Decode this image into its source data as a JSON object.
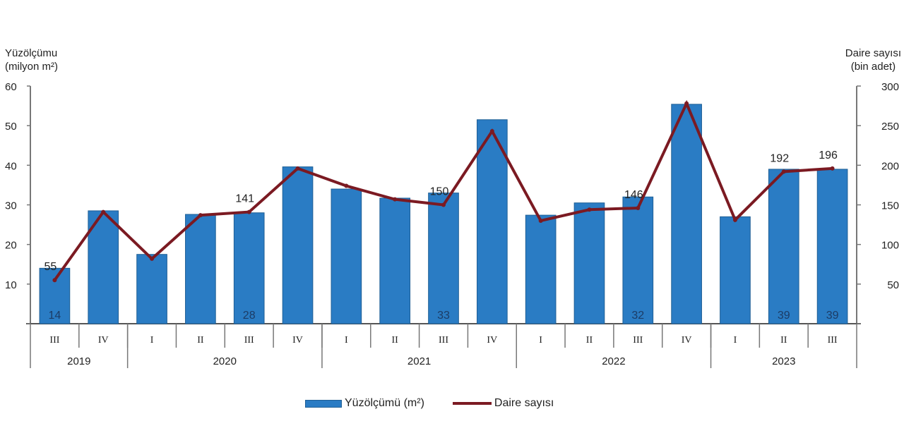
{
  "chart_data": {
    "type": "bar+line",
    "title": "",
    "left_axis": {
      "label_line1": "Yüzölçümü",
      "label_line2": "(milyon m²)",
      "ticks": [
        10,
        20,
        30,
        40,
        50,
        60
      ],
      "range": [
        0,
        60
      ]
    },
    "right_axis": {
      "label_line1": "Daire sayısı",
      "label_line2": "(bin adet)",
      "ticks": [
        50,
        100,
        150,
        200,
        250,
        300
      ],
      "range": [
        0,
        300
      ]
    },
    "categories": [
      "III",
      "IV",
      "I",
      "II",
      "III",
      "IV",
      "I",
      "II",
      "III",
      "IV",
      "I",
      "II",
      "III",
      "IV",
      "I",
      "II",
      "III"
    ],
    "years": [
      {
        "label": "2019",
        "span": 2
      },
      {
        "label": "2020",
        "span": 4
      },
      {
        "label": "2021",
        "span": 4
      },
      {
        "label": "2022",
        "span": 4
      },
      {
        "label": "2023",
        "span": 3
      }
    ],
    "series": [
      {
        "name": "Yüzölçümü (m²)",
        "type": "bar",
        "axis": "left",
        "color": "#2a7cc4",
        "values": [
          14,
          28.5,
          17.5,
          27.6,
          28,
          39.6,
          34,
          31.7,
          33,
          51.5,
          27.4,
          30.5,
          32,
          55.4,
          27,
          39,
          39
        ]
      },
      {
        "name": "Daire sayısı",
        "type": "line",
        "axis": "right",
        "color": "#7b1a22",
        "values": [
          55,
          141,
          82,
          137,
          141,
          196,
          174,
          157,
          150,
          243,
          130,
          144,
          146,
          278,
          131,
          192,
          196
        ]
      }
    ],
    "bar_labels": [
      {
        "index": 0,
        "text": "14"
      },
      {
        "index": 4,
        "text": "28"
      },
      {
        "index": 8,
        "text": "33"
      },
      {
        "index": 12,
        "text": "32"
      },
      {
        "index": 15,
        "text": "39"
      },
      {
        "index": 16,
        "text": "39"
      }
    ],
    "line_labels": [
      {
        "index": 0,
        "text": "55"
      },
      {
        "index": 4,
        "text": "141"
      },
      {
        "index": 8,
        "text": "150"
      },
      {
        "index": 12,
        "text": "146"
      },
      {
        "index": 15,
        "text": "192"
      },
      {
        "index": 16,
        "text": "196"
      }
    ],
    "legend": {
      "position": "bottom",
      "items": [
        "Yüzölçümü (m²)",
        "Daire sayısı"
      ]
    },
    "grid": false
  },
  "labels": {
    "left_title_1": "Yüzölçümu",
    "left_title_2": "(milyon m²)",
    "right_title_1": "Daire sayısı",
    "right_title_2": "(bin adet)",
    "legend_bar": "Yüzölçümü (m²)",
    "legend_line": "Daire sayısı"
  }
}
